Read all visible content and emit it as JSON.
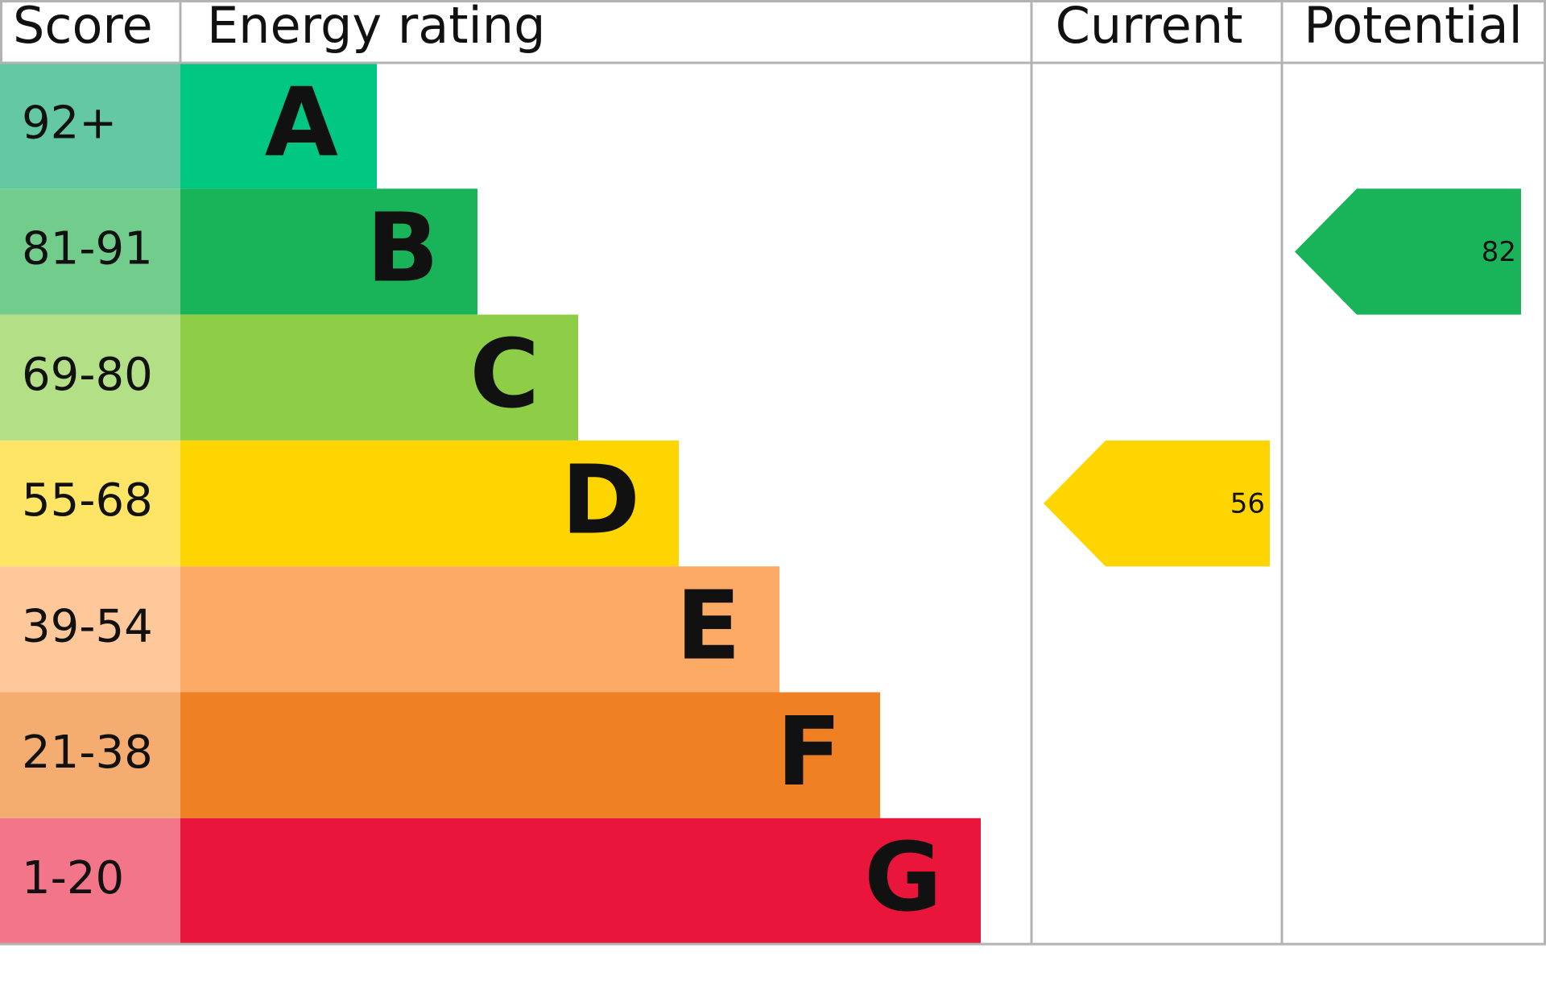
{
  "chart_data": {
    "type": "epc",
    "headers": {
      "score": "Score",
      "rating": "Energy rating",
      "current": "Current",
      "potential": "Potential"
    },
    "bands": [
      {
        "score": "92+",
        "letter": "A",
        "color": "#00c781",
        "score_color": "#64c9a3"
      },
      {
        "score": "81-91",
        "letter": "B",
        "color": "#19b459",
        "score_color": "#72cd8c"
      },
      {
        "score": "69-80",
        "letter": "C",
        "color": "#8dce46",
        "score_color": "#b3e086"
      },
      {
        "score": "55-68",
        "letter": "D",
        "color": "#ffd500",
        "score_color": "#ffe566"
      },
      {
        "score": "39-54",
        "letter": "E",
        "color": "#fcaa65",
        "score_color": "#fec89a"
      },
      {
        "score": "21-38",
        "letter": "F",
        "color": "#ef8023",
        "score_color": "#f5ac70"
      },
      {
        "score": "1-20",
        "letter": "G",
        "color": "#e9153b",
        "score_color": "#f37589"
      }
    ],
    "current": 56,
    "potential": 82
  }
}
